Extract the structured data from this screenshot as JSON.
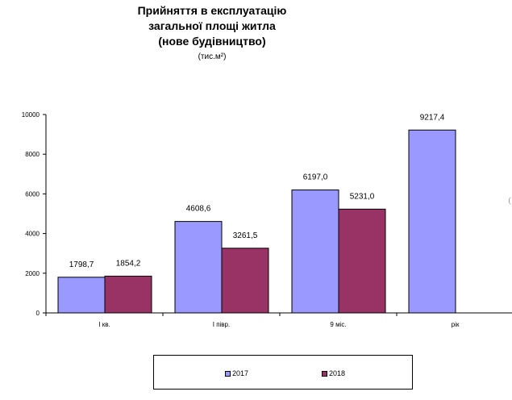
{
  "chart_data": {
    "type": "bar",
    "title_lines": [
      "Прийняття в експлуатацію",
      "загальної площі житла",
      "(нове будівництво)"
    ],
    "unit_label": "(тис.м²)",
    "categories": [
      "І кв.",
      "І півр.",
      "9 міс.",
      "рік"
    ],
    "series": [
      {
        "name": "2017",
        "values": [
          1798.7,
          4608.6,
          6197.0,
          9217.4
        ],
        "labels": [
          "1798,7",
          "4608,6",
          "6197,0",
          "9217,4"
        ],
        "color": "#9999ff"
      },
      {
        "name": "2018",
        "values": [
          1854.2,
          3261.5,
          5231.0,
          null
        ],
        "labels": [
          "1854,2",
          "3261,5",
          "5231,0",
          null
        ],
        "color": "#993366"
      }
    ],
    "ylim": [
      0,
      10000
    ],
    "yticks": [
      0,
      2000,
      4000,
      6000,
      8000,
      10000
    ],
    "grid": false,
    "legend_position": "bottom"
  }
}
